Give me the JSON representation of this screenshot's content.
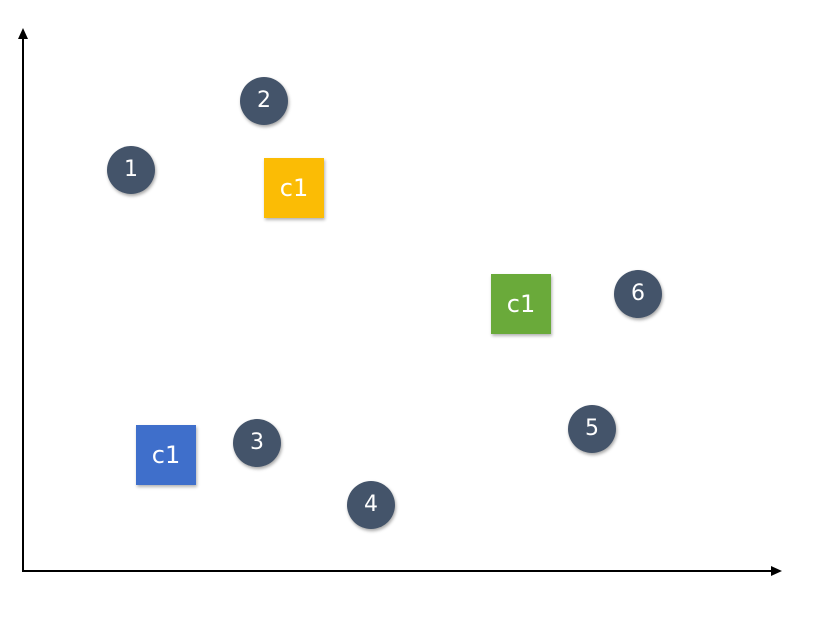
{
  "colors": {
    "point": "#44546a",
    "centroid_yellow": "#fbbc05",
    "centroid_green": "#6aaa3a",
    "centroid_blue": "#3f6fcb",
    "axis": "#000000",
    "background": "#ffffff"
  },
  "points": [
    {
      "label": "1"
    },
    {
      "label": "2"
    },
    {
      "label": "3"
    },
    {
      "label": "4"
    },
    {
      "label": "5"
    },
    {
      "label": "6"
    }
  ],
  "centroids": [
    {
      "label": "c1",
      "color": "yellow"
    },
    {
      "label": "c1",
      "color": "green"
    },
    {
      "label": "c1",
      "color": "blue"
    }
  ]
}
